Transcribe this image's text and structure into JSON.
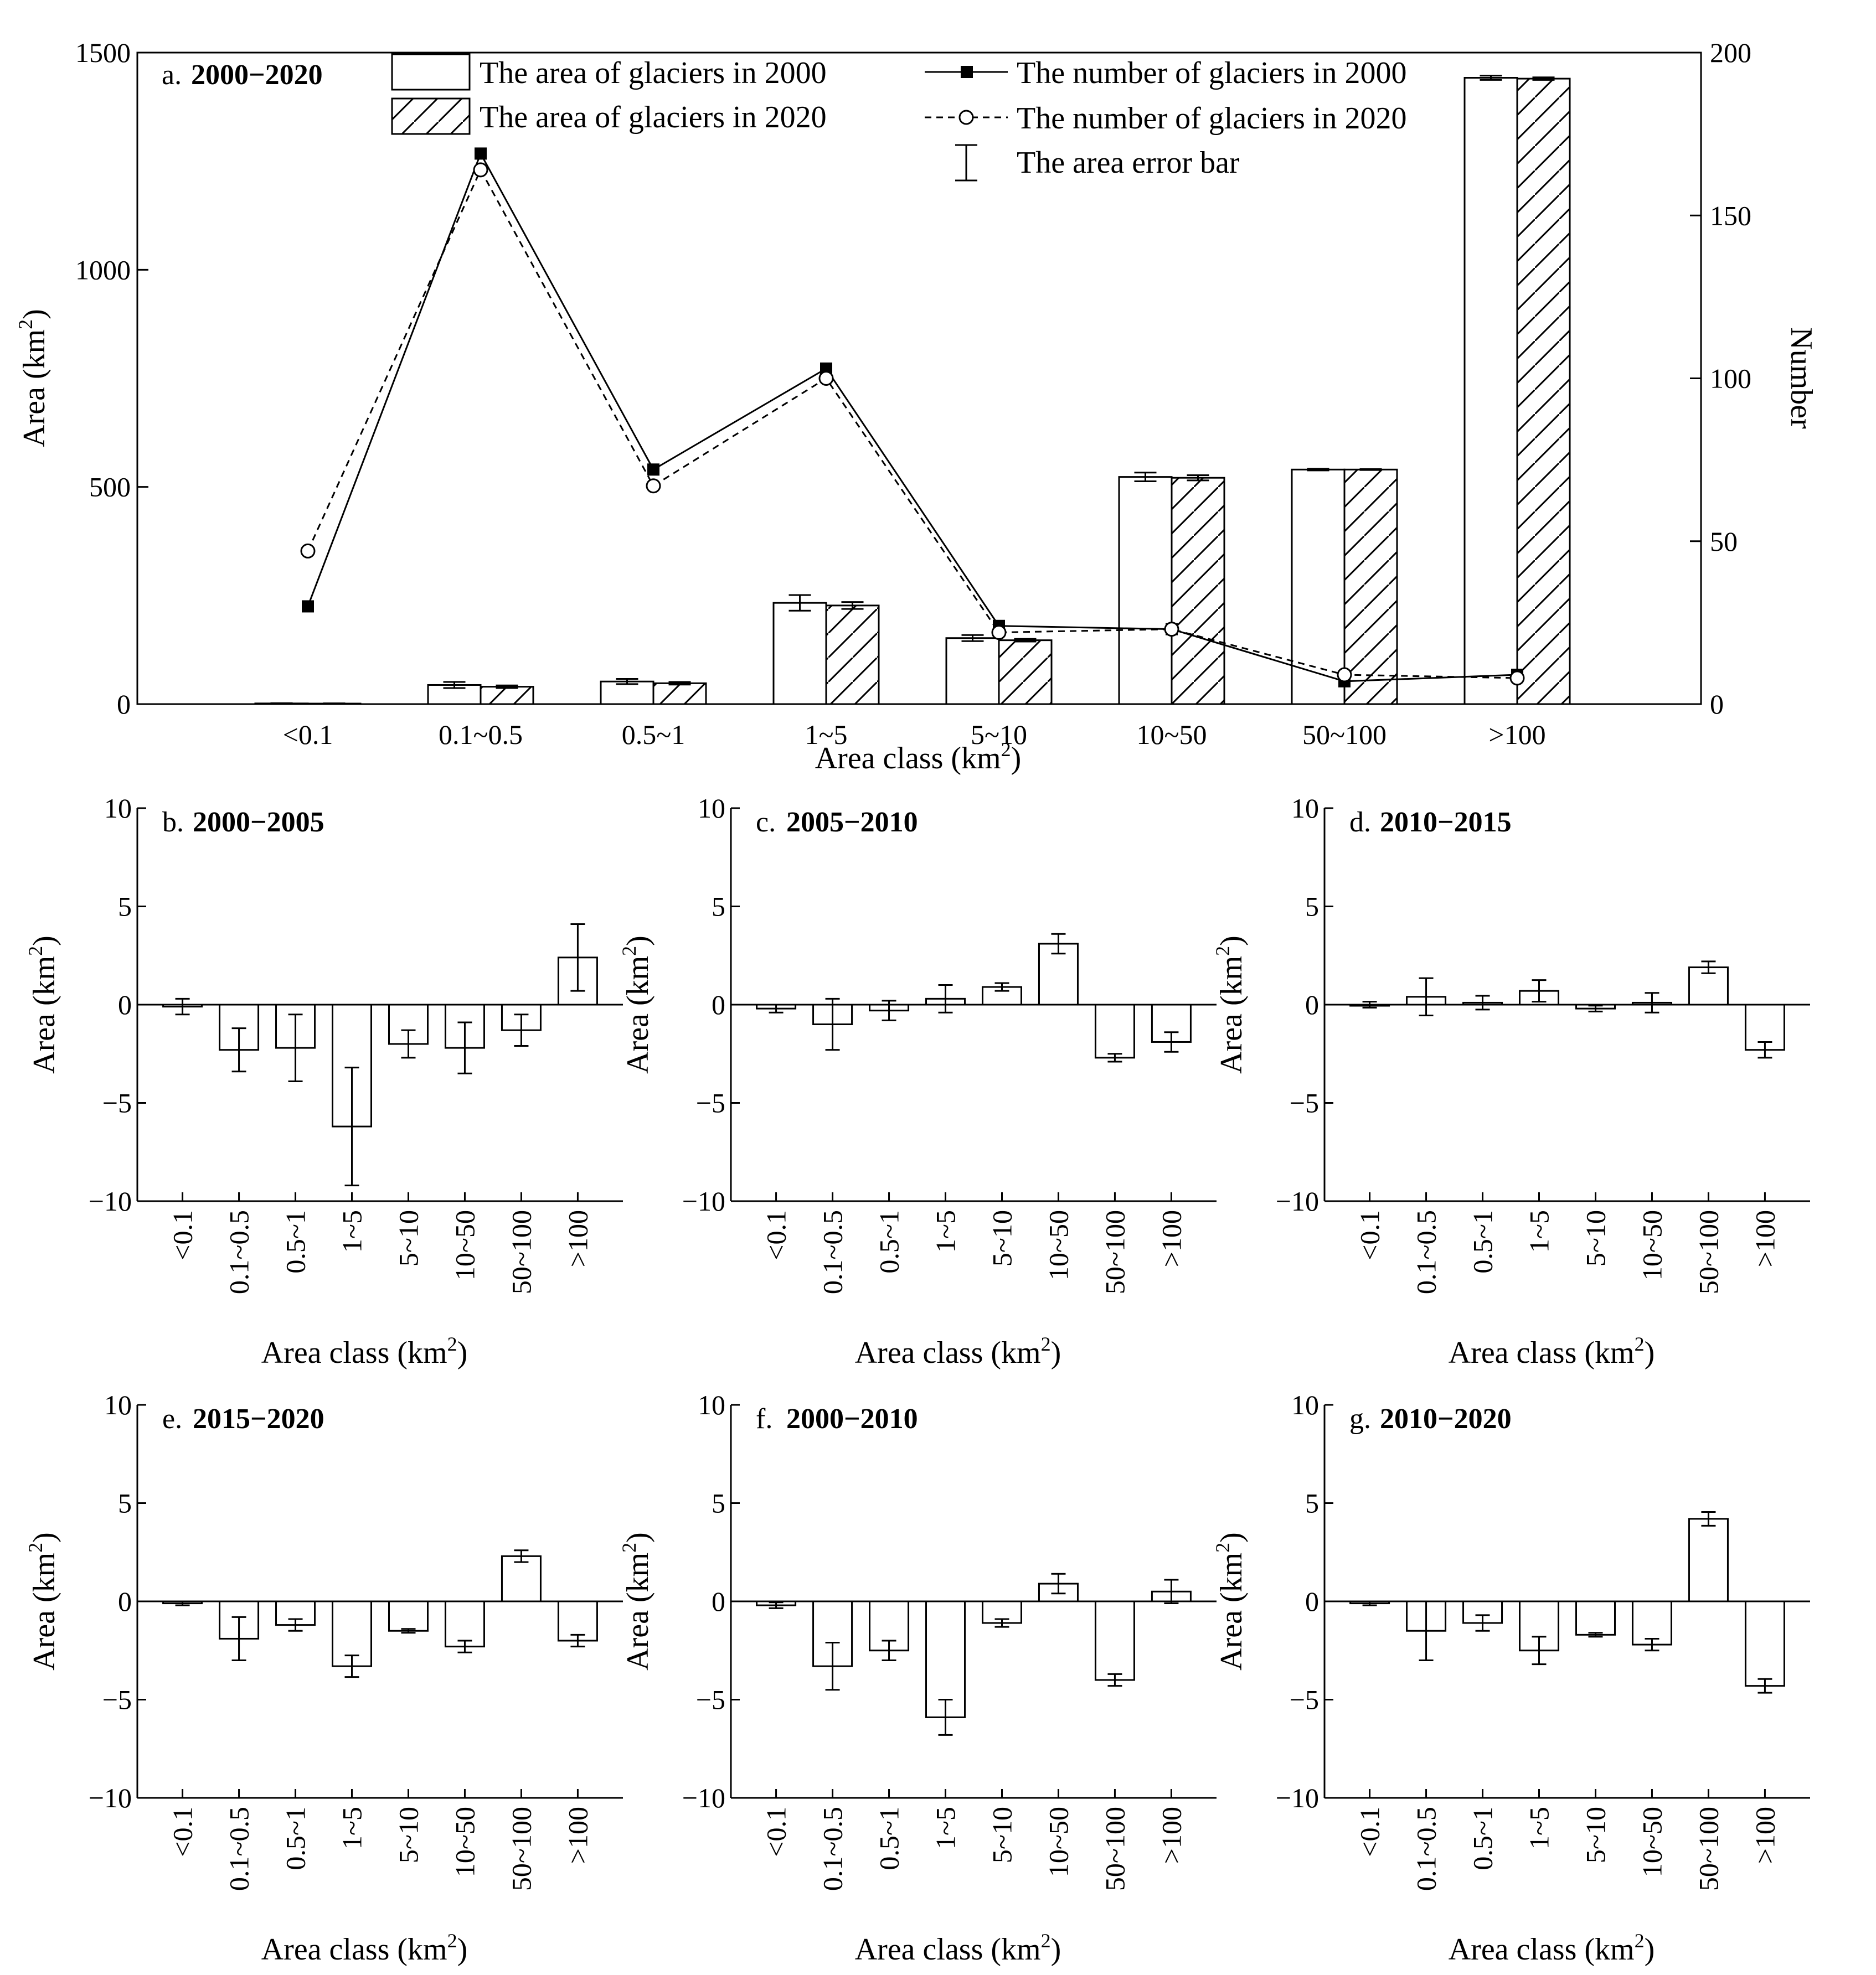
{
  "chart_data": [
    {
      "type": "bar",
      "id": "a",
      "label": "a.",
      "period": "2000−2020",
      "categories": [
        "<0.1",
        "0.1~0.5",
        "0.5~1",
        "1~5",
        "5~10",
        "10~50",
        "50~100",
        ">100"
      ],
      "xlabel": "Area class (km",
      "xlabel_sup": "2",
      "xlabel_end": ")",
      "ylabel": "Area (km",
      "ylabel_sup": "2",
      "ylabel_end": ")",
      "y2label": "Number",
      "ylim": [
        0,
        1500
      ],
      "yticks": [
        0,
        500,
        1000,
        1500
      ],
      "y2lim": [
        0,
        200
      ],
      "y2ticks": [
        0,
        50,
        100,
        150,
        200
      ],
      "series": [
        {
          "name": "The area of glaciers in 2000",
          "kind": "bar",
          "values": [
            1.5,
            44,
            52,
            233,
            152,
            523,
            540,
            1442
          ],
          "errors": [
            0.5,
            7,
            6,
            18,
            7,
            10,
            2,
            5
          ]
        },
        {
          "name": "The area of glaciers in 2020",
          "kind": "bar",
          "pattern": "hatch",
          "values": [
            1.2,
            40,
            48,
            227,
            147,
            521,
            540,
            1440
          ],
          "errors": [
            0.5,
            3,
            3,
            8,
            3,
            6,
            1,
            3
          ]
        },
        {
          "name": "The number of glaciers in 2000",
          "kind": "line",
          "style": "solid-square",
          "values": [
            30,
            169,
            72,
            103,
            24,
            23,
            7,
            9
          ]
        },
        {
          "name": "The number of glaciers in 2020",
          "kind": "line",
          "style": "dashed-circle",
          "values": [
            47,
            164,
            67,
            100,
            22,
            23,
            9,
            8
          ]
        }
      ],
      "error_legend": "The area error bar"
    },
    {
      "type": "bar",
      "id": "b",
      "label": "b.",
      "period": "2000−2005",
      "categories": [
        "<0.1",
        "0.1~0.5",
        "0.5~1",
        "1~5",
        "5~10",
        "10~50",
        "50~100",
        ">100"
      ],
      "values": [
        -0.1,
        -2.3,
        -2.2,
        -6.2,
        -2.0,
        -2.2,
        -1.3,
        2.4
      ],
      "errors": [
        0.4,
        1.1,
        1.7,
        3.0,
        0.7,
        1.3,
        0.8,
        1.7
      ],
      "ylim": [
        -10,
        10
      ],
      "yticks": [
        -10,
        -5,
        0,
        5,
        10
      ],
      "xlabel": "Area class (km",
      "xlabel_sup": "2",
      "xlabel_end": ")",
      "ylabel": "Area (km",
      "ylabel_sup": "2",
      "ylabel_end": ")"
    },
    {
      "type": "bar",
      "id": "c",
      "label": "c.",
      "period": "2005−2010",
      "categories": [
        "<0.1",
        "0.1~0.5",
        "0.5~1",
        "1~5",
        "5~10",
        "10~50",
        "50~100",
        ">100"
      ],
      "values": [
        -0.2,
        -1.0,
        -0.3,
        0.3,
        0.9,
        3.1,
        -2.7,
        -1.9
      ],
      "errors": [
        0.2,
        1.3,
        0.5,
        0.7,
        0.2,
        0.5,
        0.2,
        0.5
      ],
      "ylim": [
        -10,
        10
      ],
      "yticks": [
        -10,
        -5,
        0,
        5,
        10
      ],
      "xlabel": "Area class (km",
      "xlabel_sup": "2",
      "xlabel_end": ")",
      "ylabel": "Area (km",
      "ylabel_sup": "2",
      "ylabel_end": ")"
    },
    {
      "type": "bar",
      "id": "d",
      "label": "d.",
      "period": "2010−2015",
      "categories": [
        "<0.1",
        "0.1~0.5",
        "0.5~1",
        "1~5",
        "5~10",
        "10~50",
        "50~100",
        ">100"
      ],
      "values": [
        0.0,
        0.4,
        0.1,
        0.7,
        -0.2,
        0.1,
        1.9,
        -2.3
      ],
      "errors": [
        0.15,
        0.95,
        0.35,
        0.55,
        0.15,
        0.5,
        0.3,
        0.4
      ],
      "ylim": [
        -10,
        10
      ],
      "yticks": [
        -10,
        -5,
        0,
        5,
        10
      ],
      "xlabel": "Area class (km",
      "xlabel_sup": "2",
      "xlabel_end": ")",
      "ylabel": "Area (km",
      "ylabel_sup": "2",
      "ylabel_end": ")"
    },
    {
      "type": "bar",
      "id": "e",
      "label": "e.",
      "period": "2015−2020",
      "categories": [
        "<0.1",
        "0.1~0.5",
        "0.5~1",
        "1~5",
        "5~10",
        "10~50",
        "50~100",
        ">100"
      ],
      "values": [
        -0.1,
        -1.9,
        -1.2,
        -3.3,
        -1.5,
        -2.3,
        2.3,
        -2.0
      ],
      "errors": [
        0.1,
        1.1,
        0.3,
        0.55,
        0.1,
        0.3,
        0.3,
        0.3
      ],
      "ylim": [
        -10,
        10
      ],
      "yticks": [
        -10,
        -5,
        0,
        5,
        10
      ],
      "xlabel": "Area class (km",
      "xlabel_sup": "2",
      "xlabel_end": ")",
      "ylabel": "Area (km",
      "ylabel_sup": "2",
      "ylabel_end": ")"
    },
    {
      "type": "bar",
      "id": "f",
      "label": "f.",
      "period": "2000−2010",
      "categories": [
        "<0.1",
        "0.1~0.5",
        "0.5~1",
        "1~5",
        "5~10",
        "10~50",
        "50~100",
        ">100"
      ],
      "values": [
        -0.2,
        -3.3,
        -2.5,
        -5.9,
        -1.1,
        0.9,
        -4.0,
        0.5
      ],
      "errors": [
        0.15,
        1.2,
        0.5,
        0.9,
        0.2,
        0.5,
        0.3,
        0.6
      ],
      "ylim": [
        -10,
        10
      ],
      "yticks": [
        -10,
        -5,
        0,
        5,
        10
      ],
      "xlabel": "Area class (km",
      "xlabel_sup": "2",
      "xlabel_end": ")",
      "ylabel": "Area (km",
      "ylabel_sup": "2",
      "ylabel_end": ")"
    },
    {
      "type": "bar",
      "id": "g",
      "label": "g.",
      "period": "2010−2020",
      "categories": [
        "<0.1",
        "0.1~0.5",
        "0.5~1",
        "1~5",
        "5~10",
        "10~50",
        "50~100",
        ">100"
      ],
      "values": [
        -0.1,
        -1.5,
        -1.1,
        -2.5,
        -1.7,
        -2.2,
        4.2,
        -4.3
      ],
      "errors": [
        0.1,
        1.5,
        0.4,
        0.7,
        0.1,
        0.3,
        0.35,
        0.35
      ],
      "ylim": [
        -10,
        10
      ],
      "yticks": [
        -10,
        -5,
        0,
        5,
        10
      ],
      "xlabel": "Area class (km",
      "xlabel_sup": "2",
      "xlabel_end": ")",
      "ylabel": "Area (km",
      "ylabel_sup": "2",
      "ylabel_end": ")"
    }
  ]
}
